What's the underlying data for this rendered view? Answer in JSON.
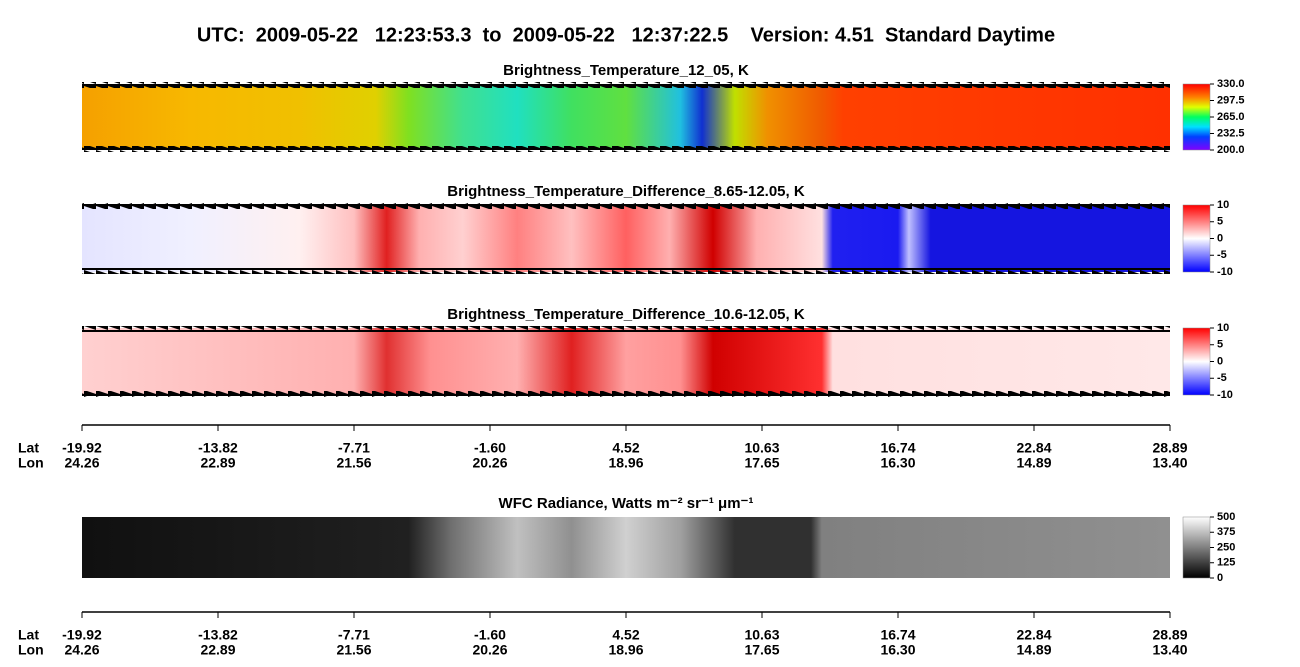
{
  "title": "UTC:  2009-05-22   12:23:53.3  to  2009-05-22   12:37:22.5    Version: 4.51  Standard Daytime",
  "panels": [
    {
      "title": "Brightness_Temperature_12_05, K",
      "colorbar_ticks": [
        "330.0",
        "297.5",
        "265.0",
        "232.5",
        "200.0"
      ]
    },
    {
      "title": "Brightness_Temperature_Difference_8.65-12.05, K",
      "colorbar_ticks": [
        "10",
        "5",
        "0",
        "-5",
        "-10"
      ]
    },
    {
      "title": "Brightness_Temperature_Difference_10.6-12.05, K",
      "colorbar_ticks": [
        "10",
        "5",
        "0",
        "-5",
        "-10"
      ]
    },
    {
      "title": "WFC Radiance, Watts m⁻² sr⁻¹ μm⁻¹",
      "colorbar_ticks": [
        "500",
        "375",
        "250",
        "125",
        "0"
      ]
    }
  ],
  "axis": {
    "lat_label": "Lat",
    "lon_label": "Lon",
    "lat_ticks": [
      "-19.92",
      "-13.82",
      "-7.71",
      "-1.60",
      "4.52",
      "10.63",
      "16.74",
      "22.84",
      "28.89"
    ],
    "lon_ticks": [
      "24.26",
      "22.89",
      "21.56",
      "20.26",
      "18.96",
      "17.65",
      "16.30",
      "14.89",
      "13.40"
    ]
  }
}
